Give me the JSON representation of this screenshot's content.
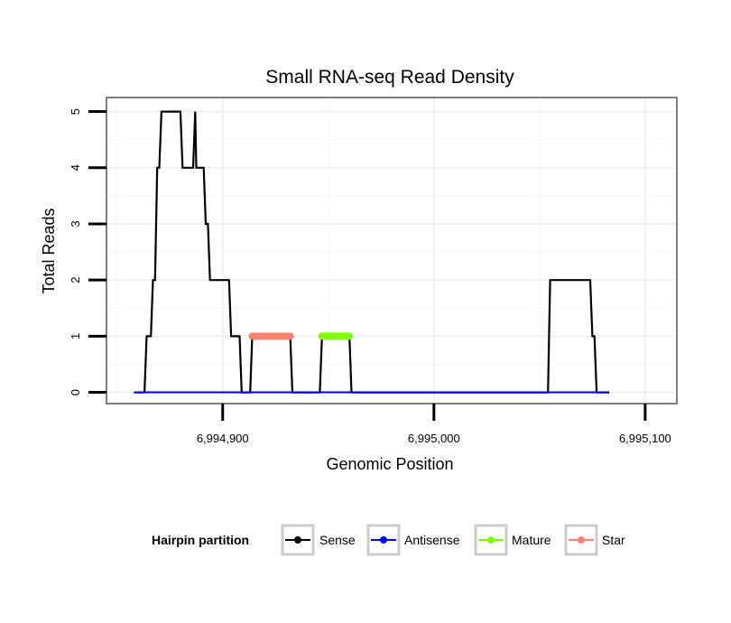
{
  "chart_data": {
    "type": "line",
    "title": "Small RNA-seq Read Density",
    "xlabel": "Genomic Position",
    "ylabel": "Total Reads",
    "xlim": [
      6994845,
      6995115
    ],
    "ylim": [
      -0.2,
      5.25
    ],
    "xticks": [
      6994900,
      6995000,
      6995100
    ],
    "xtick_labels": [
      "6,994,900",
      "6,995,000",
      "6,995,100"
    ],
    "yticks": [
      0,
      1,
      2,
      3,
      4,
      5
    ],
    "ytick_labels": [
      "0",
      "1",
      "2",
      "3",
      "4",
      "5"
    ],
    "grid": true,
    "legend": {
      "title": "Hairpin partition",
      "position": "bottom",
      "entries": [
        {
          "name": "Sense",
          "color": "#000000"
        },
        {
          "name": "Antisense",
          "color": "#0000ff"
        },
        {
          "name": "Mature",
          "color": "#7fff00"
        },
        {
          "name": "Star",
          "color": "#fa8072"
        }
      ]
    },
    "series": [
      {
        "name": "Sense",
        "color": "#000000",
        "x": [
          6994858,
          6994863,
          6994864,
          6994866,
          6994867,
          6994868,
          6994869,
          6994870,
          6994871,
          6994872,
          6994873,
          6994880,
          6994881,
          6994886,
          6994887,
          6994887.5,
          6994888,
          6994891,
          6994892,
          6994893,
          6994894,
          6994895,
          6994903,
          6994904,
          6994908,
          6994909,
          6994913,
          6994914,
          6994932,
          6994933,
          6994946,
          6994947,
          6994960,
          6994961,
          6995054,
          6995055,
          6995074,
          6995075,
          6995076,
          6995077,
          6995078,
          6995083
        ],
        "y": [
          0,
          0,
          1,
          1,
          2,
          2,
          4,
          4,
          5,
          5,
          5,
          5,
          4,
          4,
          5,
          4,
          4,
          4,
          3,
          3,
          2,
          2,
          2,
          1,
          1,
          0,
          0,
          1,
          1,
          0,
          0,
          1,
          1,
          0,
          0,
          2,
          2,
          1,
          1,
          0,
          0,
          0
        ]
      },
      {
        "name": "Antisense",
        "color": "#0000ff",
        "x": [
          6994858,
          6995082
        ],
        "y": [
          0,
          0
        ]
      },
      {
        "name": "Mature",
        "color": "#7fff00",
        "x": [
          6994947,
          6994960
        ],
        "y": [
          1,
          1
        ]
      },
      {
        "name": "Star",
        "color": "#fa8072",
        "x": [
          6994914,
          6994932
        ],
        "y": [
          1,
          1
        ]
      }
    ]
  }
}
